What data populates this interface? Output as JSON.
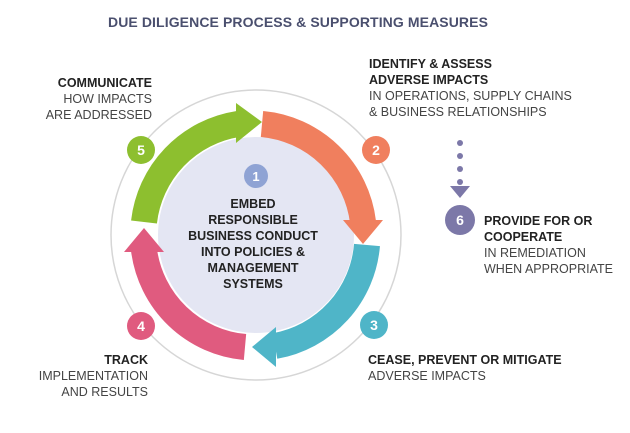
{
  "title": "DUE DILIGENCE PROCESS & SUPPORTING MEASURES",
  "center": {
    "number": "1",
    "lines": [
      "EMBED",
      "RESPONSIBLE",
      "BUSINESS CONDUCT",
      "INTO POLICIES &",
      "MANAGEMENT SYSTEMS"
    ]
  },
  "steps": [
    {
      "number": "2",
      "heading": [
        "IDENTIFY & ASSESS",
        "ADVERSE IMPACTS"
      ],
      "detail": [
        "IN OPERATIONS, SUPPLY CHAINS",
        "& BUSINESS RELATIONSHIPS"
      ],
      "color": "#f07f5e"
    },
    {
      "number": "3",
      "heading": [
        "CEASE, PREVENT OR MITIGATE"
      ],
      "detail": [
        "ADVERSE IMPACTS"
      ],
      "color": "#4fb5c8"
    },
    {
      "number": "4",
      "heading": [
        "TRACK"
      ],
      "detail": [
        "IMPLEMENTATION",
        "AND RESULTS"
      ],
      "color": "#e05b7f"
    },
    {
      "number": "5",
      "heading": [
        "COMMUNICATE"
      ],
      "detail": [
        "HOW IMPACTS",
        "ARE ADDRESSED"
      ],
      "color": "#8dbf2f"
    },
    {
      "number": "6",
      "heading": [
        "PROVIDE FOR OR",
        "COOPERATE"
      ],
      "detail": [
        "IN REMEDIATION",
        "WHEN APPROPRIATE"
      ],
      "color": "#7c78a8"
    }
  ],
  "colors": {
    "center_fill": "#e4e6f3",
    "center_badge": "#8fa3d4",
    "ring": "#d6d6d6",
    "title": "#4a4f6e"
  }
}
